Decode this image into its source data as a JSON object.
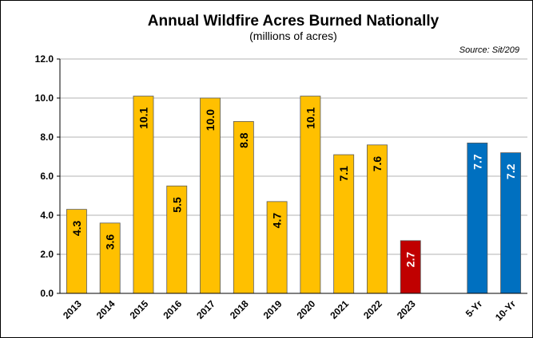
{
  "chart_data": {
    "type": "bar",
    "title": "Annual Wildfire Acres Burned Nationally",
    "subtitle": "(millions of acres)",
    "source": "Source: Sit/209",
    "ylim": [
      0,
      12
    ],
    "yticks": [
      "0.0",
      "2.0",
      "4.0",
      "6.0",
      "8.0",
      "10.0",
      "12.0"
    ],
    "grid": true,
    "categories": [
      "2013",
      "2014",
      "2015",
      "2016",
      "2017",
      "2018",
      "2019",
      "2020",
      "2021",
      "2022",
      "2023",
      "",
      "5-Yr",
      "10-Yr"
    ],
    "values": [
      4.3,
      3.6,
      10.1,
      5.5,
      10.0,
      8.8,
      4.7,
      10.1,
      7.1,
      7.6,
      2.7,
      null,
      7.7,
      7.2
    ],
    "labels": [
      "4.3",
      "3.6",
      "10.1",
      "5.5",
      "10.0",
      "8.8",
      "4.7",
      "10.1",
      "7.1",
      "7.6",
      "2.7",
      "",
      "7.7",
      "7.2"
    ],
    "bar_colors": [
      "#FFC000",
      "#FFC000",
      "#FFC000",
      "#FFC000",
      "#FFC000",
      "#FFC000",
      "#FFC000",
      "#FFC000",
      "#FFC000",
      "#FFC000",
      "#C00000",
      "",
      "#0070C0",
      "#0070C0"
    ],
    "label_colors": [
      "#000000",
      "#000000",
      "#000000",
      "#000000",
      "#000000",
      "#000000",
      "#000000",
      "#000000",
      "#000000",
      "#000000",
      "#FFFFFF",
      "",
      "#FFFFFF",
      "#FFFFFF"
    ]
  }
}
